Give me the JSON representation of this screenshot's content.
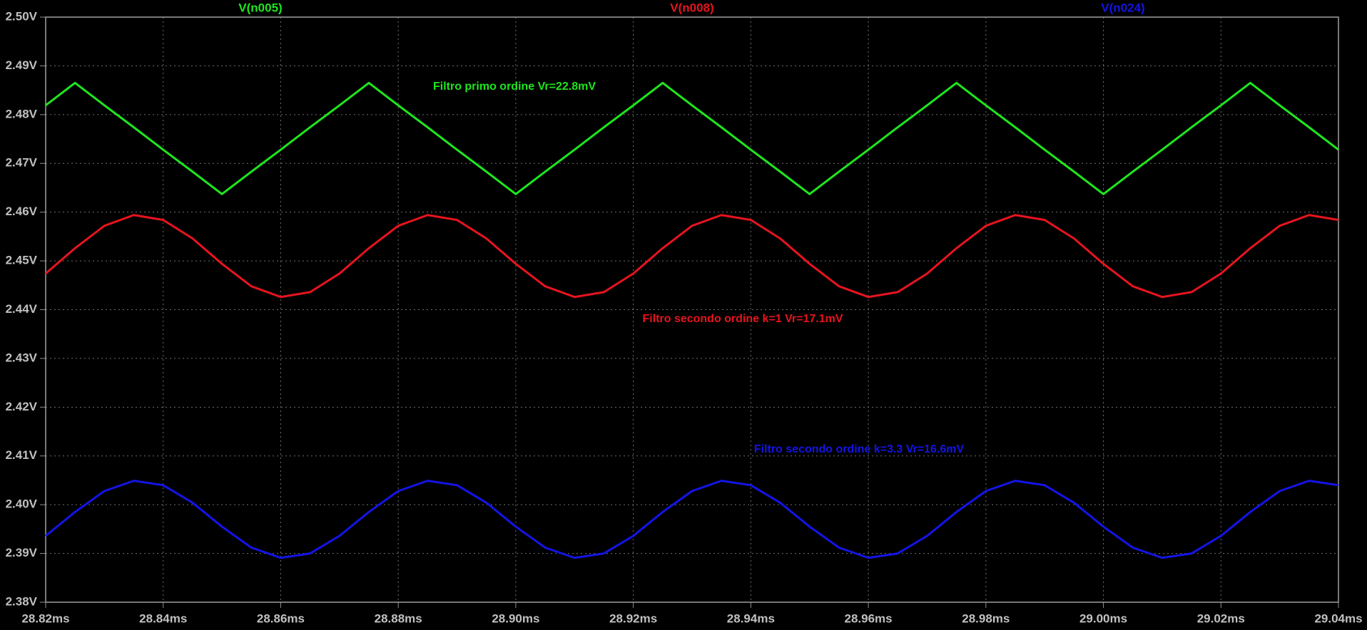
{
  "chart_data": {
    "type": "line",
    "x": [
      28.82,
      28.825,
      28.83,
      28.835,
      28.84,
      28.845,
      28.85,
      28.855,
      28.86,
      28.865,
      28.87,
      28.875,
      28.88,
      28.885,
      28.89,
      28.895,
      28.9,
      28.905,
      28.91,
      28.915,
      28.92,
      28.925,
      28.93,
      28.935,
      28.94,
      28.945,
      28.95,
      28.955,
      28.96,
      28.965,
      28.97,
      28.975,
      28.98,
      28.985,
      28.99,
      28.995,
      29.0,
      29.005,
      29.01,
      29.015,
      29.02,
      29.025,
      29.03,
      29.035,
      29.04
    ],
    "series": [
      {
        "name": "V(n005)",
        "color": "#1ee61e",
        "values": [
          2.4819,
          2.4865,
          2.4819,
          2.4774,
          2.4728,
          2.4683,
          2.4637,
          2.4683,
          2.4728,
          2.4774,
          2.4819,
          2.4865,
          2.4819,
          2.4774,
          2.4728,
          2.4683,
          2.4637,
          2.4683,
          2.4728,
          2.4774,
          2.4819,
          2.4865,
          2.4819,
          2.4774,
          2.4728,
          2.4683,
          2.4637,
          2.4683,
          2.4728,
          2.4774,
          2.4819,
          2.4865,
          2.4819,
          2.4774,
          2.4728,
          2.4683,
          2.4637,
          2.4683,
          2.4728,
          2.4774,
          2.4819,
          2.4865,
          2.4819,
          2.4774,
          2.4728
        ]
      },
      {
        "name": "V(n008)",
        "color": "#e6141e",
        "values": [
          2.4474,
          2.4526,
          2.4572,
          2.4594,
          2.4584,
          2.4546,
          2.4494,
          2.4448,
          2.4426,
          2.4436,
          2.4474,
          2.4526,
          2.4572,
          2.4594,
          2.4584,
          2.4546,
          2.4494,
          2.4448,
          2.4426,
          2.4436,
          2.4474,
          2.4526,
          2.4572,
          2.4594,
          2.4584,
          2.4546,
          2.4494,
          2.4448,
          2.4426,
          2.4436,
          2.4474,
          2.4526,
          2.4572,
          2.4594,
          2.4584,
          2.4546,
          2.4494,
          2.4448,
          2.4426,
          2.4436,
          2.4474,
          2.4526,
          2.4572,
          2.4594,
          2.4584
        ]
      },
      {
        "name": "V(n024)",
        "color": "#1414e6",
        "values": [
          2.3936,
          2.3985,
          2.4028,
          2.4049,
          2.404,
          2.4004,
          2.3955,
          2.3912,
          2.3891,
          2.39,
          2.3936,
          2.3985,
          2.4028,
          2.4049,
          2.404,
          2.4004,
          2.3955,
          2.3912,
          2.3891,
          2.39,
          2.3936,
          2.3985,
          2.4028,
          2.4049,
          2.404,
          2.4004,
          2.3955,
          2.3912,
          2.3891,
          2.39,
          2.3936,
          2.3985,
          2.4028,
          2.4049,
          2.404,
          2.4004,
          2.3955,
          2.3912,
          2.3891,
          2.39,
          2.3936,
          2.3985,
          2.4028,
          2.4049,
          2.404
        ]
      }
    ],
    "annotations": [
      {
        "text": "Filtro primo ordine Vr=22.8mV",
        "color": "#1ee61e"
      },
      {
        "text": "Filtro secondo ordine k=1 Vr=17.1mV",
        "color": "#e6141e"
      },
      {
        "text": "Filtro secondo ordine k=3.3  Vr=16.6mV",
        "color": "#1414e6"
      }
    ],
    "xlim": [
      28.82,
      29.04
    ],
    "xticks": [
      {
        "value": 28.82,
        "label": "28.82ms"
      },
      {
        "value": 28.84,
        "label": "28.84ms"
      },
      {
        "value": 28.86,
        "label": "28.86ms"
      },
      {
        "value": 28.88,
        "label": "28.88ms"
      },
      {
        "value": 28.9,
        "label": "28.90ms"
      },
      {
        "value": 28.92,
        "label": "28.92ms"
      },
      {
        "value": 28.94,
        "label": "28.94ms"
      },
      {
        "value": 28.96,
        "label": "28.96ms"
      },
      {
        "value": 28.98,
        "label": "28.98ms"
      },
      {
        "value": 29.0,
        "label": "29.00ms"
      },
      {
        "value": 29.02,
        "label": "29.02ms"
      },
      {
        "value": 29.04,
        "label": "29.04ms"
      }
    ],
    "ylim": [
      2.38,
      2.5
    ],
    "yticks": [
      {
        "value": 2.38,
        "label": "2.38V"
      },
      {
        "value": 2.39,
        "label": "2.39V"
      },
      {
        "value": 2.4,
        "label": "2.40V"
      },
      {
        "value": 2.41,
        "label": "2.41V"
      },
      {
        "value": 2.42,
        "label": "2.42V"
      },
      {
        "value": 2.43,
        "label": "2.43V"
      },
      {
        "value": 2.44,
        "label": "2.44V"
      },
      {
        "value": 2.45,
        "label": "2.45V"
      },
      {
        "value": 2.46,
        "label": "2.46V"
      },
      {
        "value": 2.47,
        "label": "2.47V"
      },
      {
        "value": 2.48,
        "label": "2.48V"
      },
      {
        "value": 2.49,
        "label": "2.49V"
      },
      {
        "value": 2.5,
        "label": "2.50V"
      }
    ],
    "grid": true
  }
}
